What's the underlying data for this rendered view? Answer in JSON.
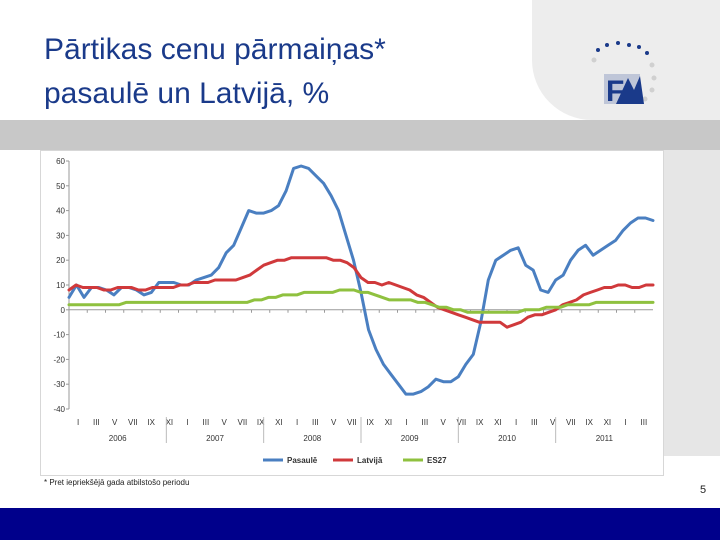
{
  "slide": {
    "title": "Pārtikas cenu pārmaiņas*\npasaulē un Latvijā, %",
    "footnote": "* Pret iepriekšējā gada atbilstošo periodu",
    "page_number": "5",
    "logo_text": "F"
  },
  "colors": {
    "title": "#1a3a8a",
    "bottom_bar": "#00008b",
    "pasaule": "#4a7fc1",
    "latvija": "#d0393b",
    "es27": "#8fc13f"
  },
  "chart_data": {
    "type": "line",
    "title": "",
    "xlabel": "",
    "ylabel": "",
    "ylim": [
      -40,
      60
    ],
    "yticks": [
      "60",
      "50",
      "40",
      "30",
      "20",
      "10",
      "0",
      "-10",
      "-20",
      "-30",
      "-40"
    ],
    "grid": false,
    "legend_position": "bottom",
    "month_labels": [
      "I",
      "III",
      "V",
      "VII",
      "IX",
      "XI",
      "I",
      "III",
      "V",
      "VII",
      "IX",
      "XI",
      "I",
      "III",
      "V",
      "VII",
      "IX",
      "XI",
      "I",
      "III",
      "V",
      "VII",
      "IX",
      "XI",
      "I",
      "III",
      "V",
      "VII",
      "IX",
      "XI",
      "I",
      "III"
    ],
    "year_labels": [
      "2006",
      "2007",
      "2008",
      "2009",
      "2010",
      "2011"
    ],
    "series": [
      {
        "name": "Pasaulē",
        "color": "#4a7fc1",
        "values": [
          5,
          10,
          5,
          9,
          9,
          8,
          6,
          9,
          9,
          8,
          6,
          7,
          11,
          11,
          11,
          10,
          10,
          12,
          13,
          14,
          17,
          23,
          26,
          33,
          40,
          39,
          39,
          40,
          42,
          48,
          57,
          58,
          57,
          54,
          51,
          46,
          40,
          30,
          20,
          7,
          -8,
          -16,
          -22,
          -26,
          -30,
          -34,
          -34,
          -33,
          -31,
          -28,
          -29,
          -29,
          -27,
          -22,
          -18,
          -5,
          12,
          20,
          22,
          24,
          25,
          18,
          16,
          8,
          7,
          12,
          14,
          20,
          24,
          26,
          22,
          24,
          26,
          28,
          32,
          35,
          37,
          37,
          36
        ]
      },
      {
        "name": "Latvijā",
        "color": "#d0393b",
        "values": [
          8,
          10,
          9,
          9,
          9,
          8,
          8,
          9,
          9,
          9,
          8,
          8,
          9,
          9,
          9,
          9,
          10,
          10,
          11,
          11,
          11,
          12,
          12,
          12,
          12,
          13,
          14,
          16,
          18,
          19,
          20,
          20,
          21,
          21,
          21,
          21,
          21,
          21,
          20,
          20,
          19,
          17,
          13,
          11,
          11,
          10,
          11,
          10,
          9,
          8,
          6,
          5,
          3,
          1,
          0,
          -1,
          -2,
          -3,
          -4,
          -5,
          -5,
          -5,
          -5,
          -7,
          -6,
          -5,
          -3,
          -2,
          -2,
          -1,
          0,
          2,
          3,
          4,
          6,
          7,
          8,
          9,
          9,
          10,
          10,
          9,
          9,
          10,
          10
        ]
      },
      {
        "name": "ES27",
        "color": "#8fc13f",
        "values": [
          2,
          2,
          2,
          2,
          2,
          2,
          2,
          2,
          3,
          3,
          3,
          3,
          3,
          3,
          3,
          3,
          3,
          3,
          3,
          3,
          3,
          3,
          3,
          3,
          3,
          3,
          4,
          4,
          5,
          5,
          6,
          6,
          6,
          7,
          7,
          7,
          7,
          7,
          8,
          8,
          8,
          7,
          7,
          6,
          5,
          4,
          4,
          4,
          4,
          3,
          3,
          2,
          1,
          1,
          0,
          0,
          -1,
          -1,
          -1,
          -1,
          -1,
          -1,
          -1,
          -1,
          0,
          0,
          0,
          1,
          1,
          1,
          2,
          2,
          2,
          2,
          3,
          3,
          3,
          3,
          3,
          3,
          3,
          3,
          3
        ]
      }
    ]
  }
}
